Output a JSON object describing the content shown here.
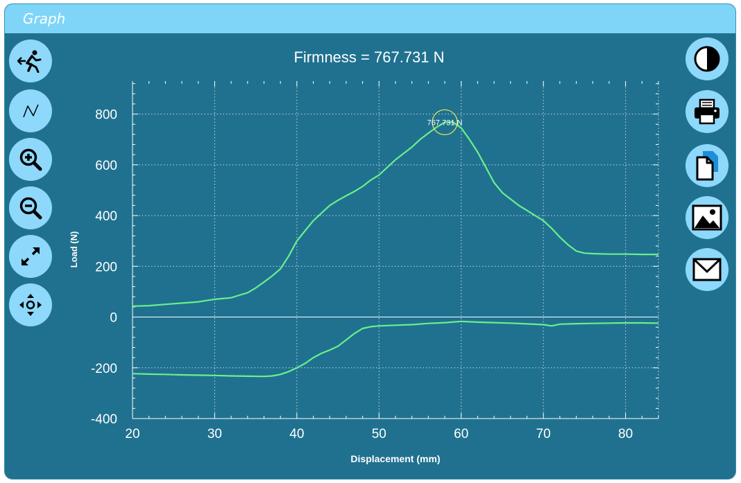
{
  "window": {
    "title": "Graph"
  },
  "left_toolbar": [
    {
      "name": "exit-button",
      "icon": "exit-run-icon"
    },
    {
      "name": "curve-button",
      "icon": "curve-icon"
    },
    {
      "name": "zoom-in-button",
      "icon": "zoom-in-icon"
    },
    {
      "name": "zoom-out-button",
      "icon": "zoom-out-icon"
    },
    {
      "name": "expand-button",
      "icon": "expand-arrows-icon"
    },
    {
      "name": "pan-button",
      "icon": "move-arrows-icon"
    }
  ],
  "right_toolbar": [
    {
      "name": "contrast-button",
      "icon": "contrast-icon"
    },
    {
      "name": "print-button",
      "icon": "printer-icon"
    },
    {
      "name": "copy-button",
      "icon": "copy-document-icon"
    },
    {
      "name": "image-button",
      "icon": "image-icon"
    },
    {
      "name": "email-button",
      "icon": "envelope-icon"
    }
  ],
  "colors": {
    "background": "#20718f",
    "titlebar": "#7fd5f8",
    "button": "#8dd8fb",
    "series": "#6af08c",
    "marker": "#e8e85a",
    "text": "#ffffff"
  },
  "chart_data": {
    "type": "line",
    "title": "Firmness = 767.731 N",
    "xlabel": "Displacement (mm)",
    "ylabel": "Load (N)",
    "xlim": [
      20,
      84
    ],
    "ylim": [
      -400,
      930
    ],
    "xticks": [
      20,
      30,
      40,
      50,
      60,
      70,
      80
    ],
    "yticks": [
      -400,
      -200,
      0,
      200,
      400,
      600,
      800
    ],
    "grid": true,
    "annotation": {
      "x": 58,
      "y": 767.731,
      "label": "767.731 N"
    },
    "series": [
      {
        "values": [
          [
            20,
            43
          ],
          [
            22,
            45
          ],
          [
            24,
            50
          ],
          [
            26,
            55
          ],
          [
            28,
            60
          ],
          [
            29,
            65
          ],
          [
            30,
            70
          ],
          [
            32,
            76
          ],
          [
            33,
            86
          ],
          [
            34,
            96
          ],
          [
            35,
            115
          ],
          [
            36,
            138
          ],
          [
            37,
            162
          ],
          [
            38,
            190
          ],
          [
            39,
            240
          ],
          [
            40,
            300
          ],
          [
            41,
            340
          ],
          [
            42,
            380
          ],
          [
            43,
            410
          ],
          [
            44,
            440
          ],
          [
            45,
            460
          ],
          [
            46,
            478
          ],
          [
            47,
            495
          ],
          [
            48,
            515
          ],
          [
            49,
            540
          ],
          [
            50,
            560
          ],
          [
            51,
            590
          ],
          [
            52,
            620
          ],
          [
            53,
            645
          ],
          [
            54,
            670
          ],
          [
            55,
            700
          ],
          [
            56,
            725
          ],
          [
            57,
            748
          ],
          [
            58,
            767.731
          ],
          [
            59,
            768
          ],
          [
            60,
            745
          ],
          [
            61,
            700
          ],
          [
            62,
            650
          ],
          [
            63,
            590
          ],
          [
            64,
            530
          ],
          [
            65,
            490
          ],
          [
            66,
            465
          ],
          [
            67,
            440
          ],
          [
            68,
            420
          ],
          [
            69,
            400
          ],
          [
            70,
            380
          ],
          [
            71,
            350
          ],
          [
            72,
            315
          ],
          [
            73,
            285
          ],
          [
            74,
            260
          ],
          [
            75,
            252
          ],
          [
            76,
            250
          ],
          [
            78,
            248
          ],
          [
            80,
            248
          ],
          [
            82,
            247
          ],
          [
            84,
            247
          ]
        ]
      },
      {
        "values": [
          [
            20,
            -223
          ],
          [
            22,
            -225
          ],
          [
            24,
            -226
          ],
          [
            26,
            -228
          ],
          [
            28,
            -229
          ],
          [
            30,
            -230
          ],
          [
            32,
            -232
          ],
          [
            34,
            -233
          ],
          [
            36,
            -234
          ],
          [
            37,
            -232
          ],
          [
            38,
            -226
          ],
          [
            39,
            -215
          ],
          [
            40,
            -200
          ],
          [
            41,
            -183
          ],
          [
            42,
            -160
          ],
          [
            43,
            -143
          ],
          [
            44,
            -130
          ],
          [
            45,
            -115
          ],
          [
            46,
            -90
          ],
          [
            47,
            -65
          ],
          [
            48,
            -45
          ],
          [
            49,
            -38
          ],
          [
            50,
            -35
          ],
          [
            52,
            -32
          ],
          [
            54,
            -30
          ],
          [
            56,
            -25
          ],
          [
            58,
            -22
          ],
          [
            60,
            -17
          ],
          [
            62,
            -20
          ],
          [
            64,
            -22
          ],
          [
            66,
            -24
          ],
          [
            68,
            -27
          ],
          [
            70,
            -30
          ],
          [
            71,
            -35
          ],
          [
            72,
            -28
          ],
          [
            74,
            -26
          ],
          [
            76,
            -25
          ],
          [
            78,
            -24
          ],
          [
            80,
            -23
          ],
          [
            82,
            -23
          ],
          [
            84,
            -24
          ]
        ]
      }
    ]
  }
}
